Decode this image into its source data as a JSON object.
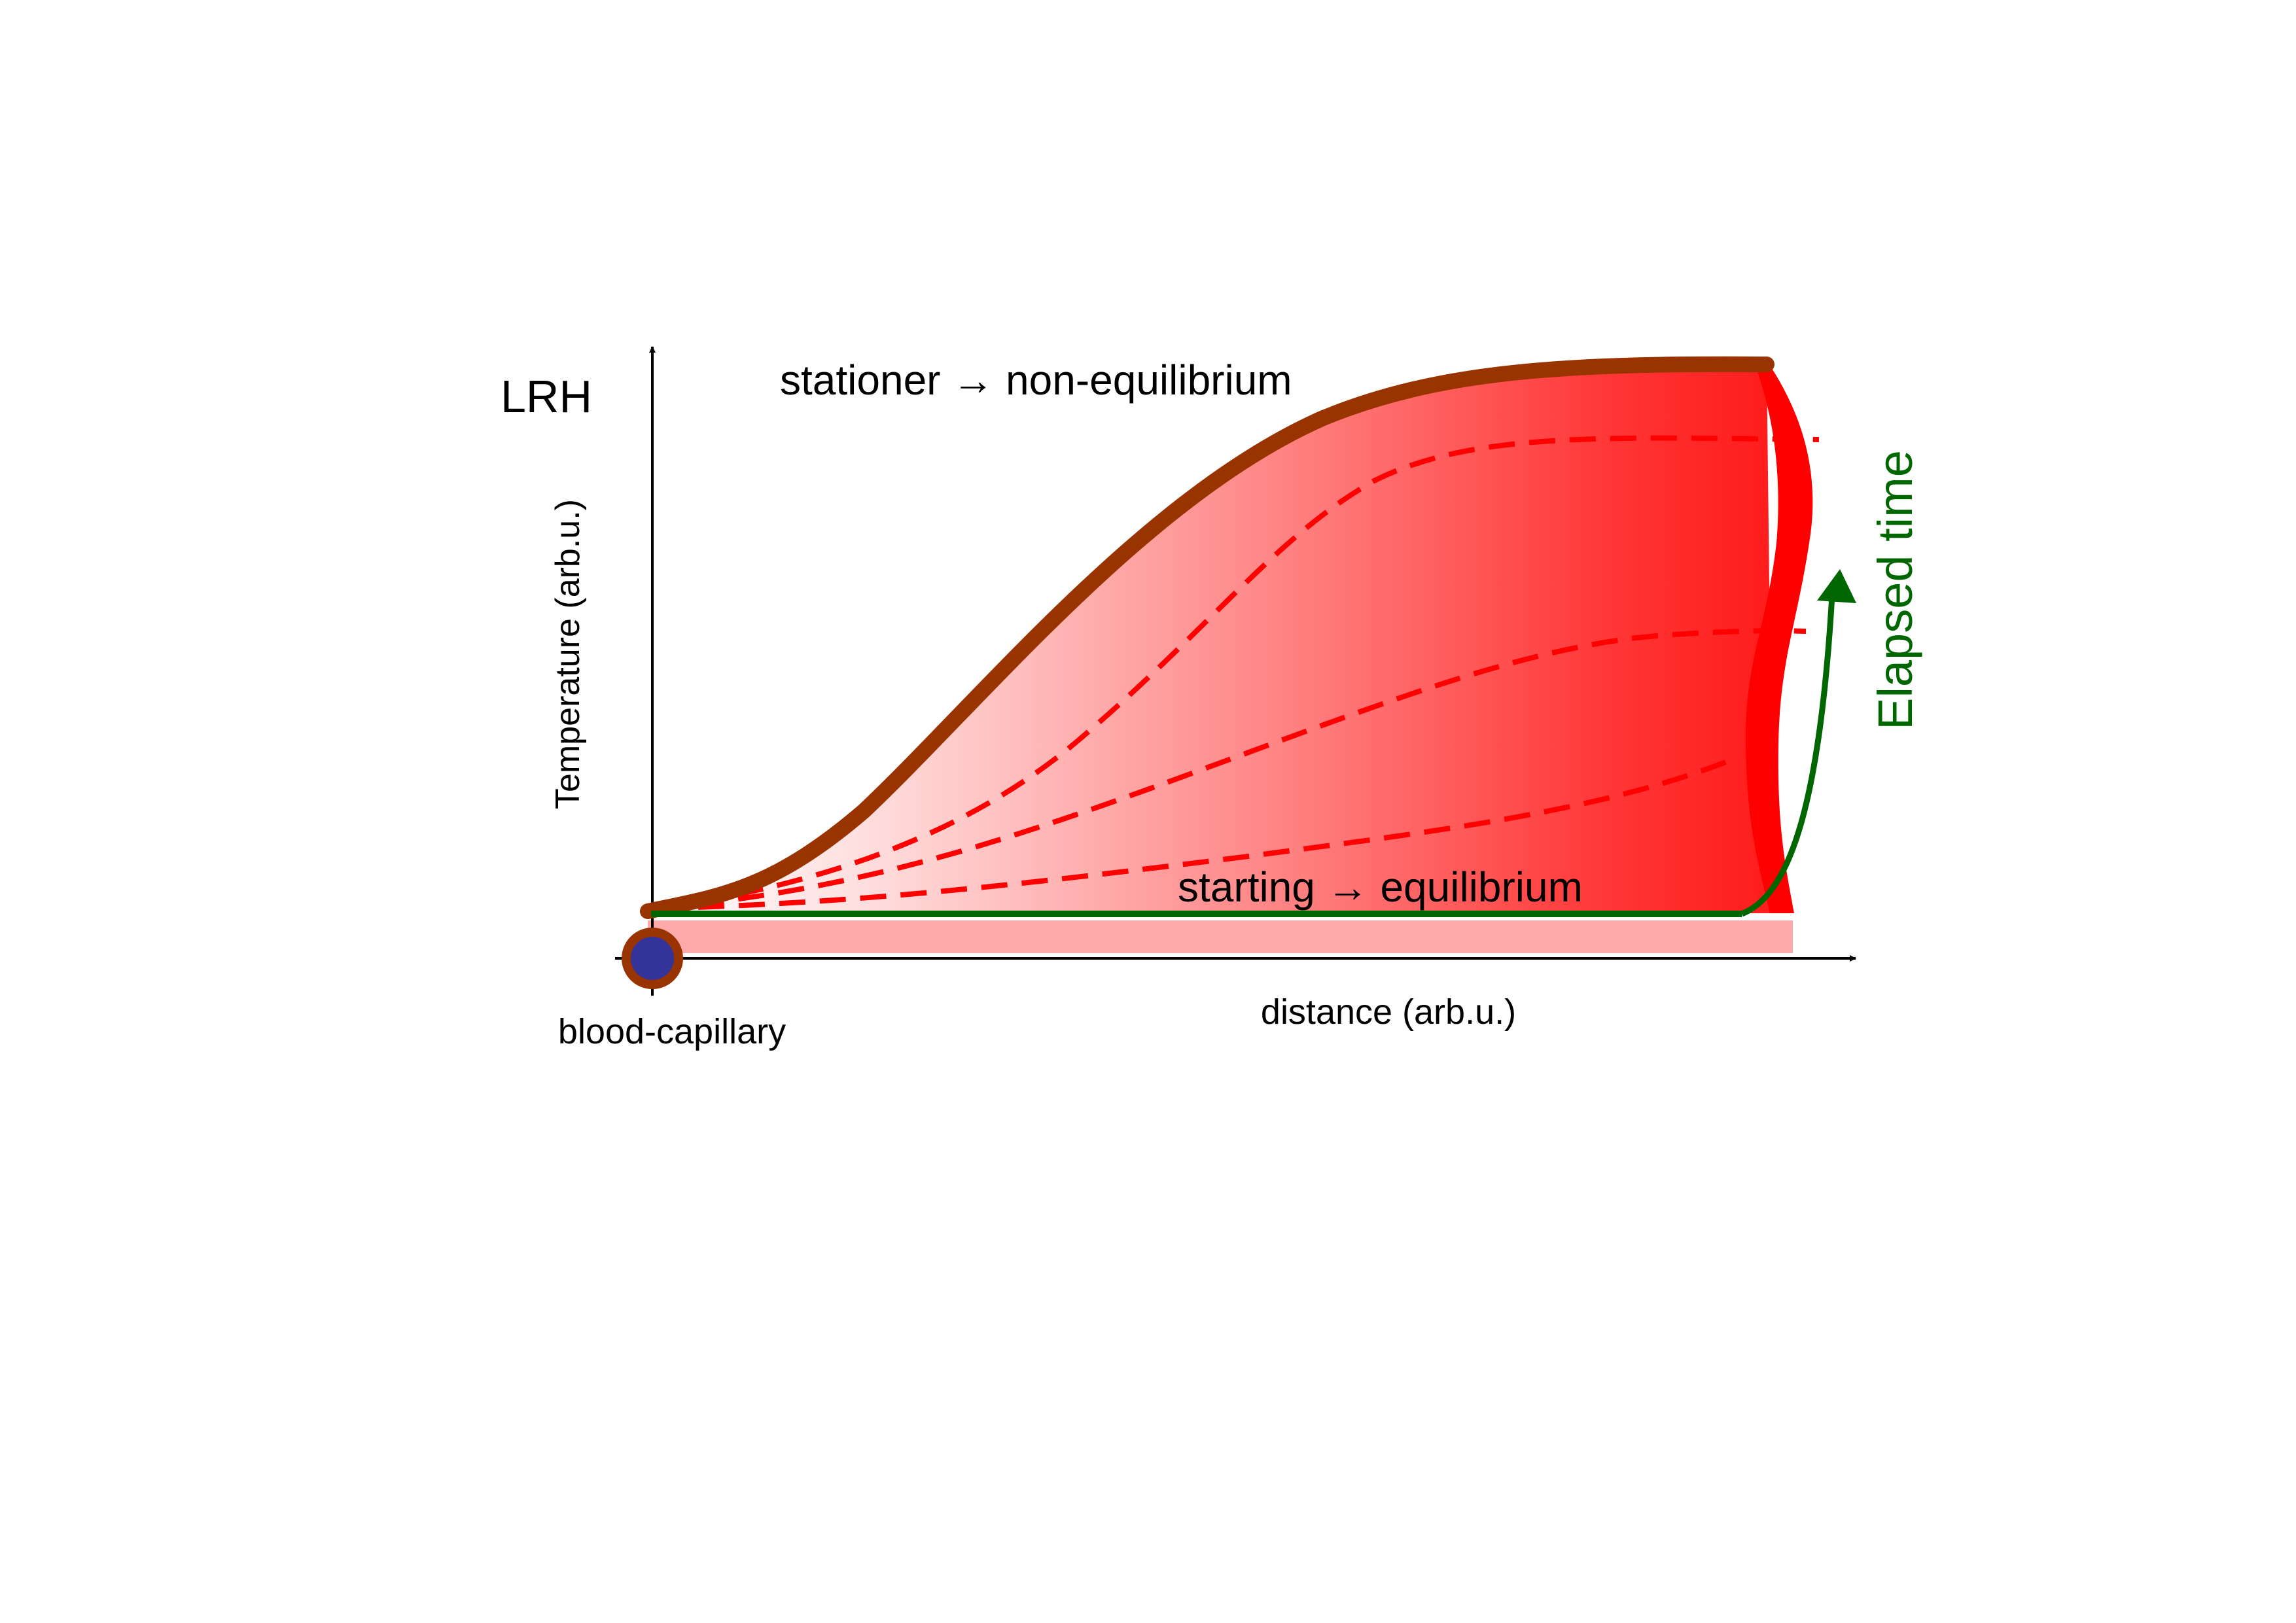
{
  "corner_label": "LRH",
  "y_axis_label": "Temperature (arb.u.)",
  "x_axis_label": "distance (arb.u.)",
  "origin_label": "blood-capillary",
  "top_curve_label": "stationer → non-equilibrium",
  "bottom_line_label": "starting → equilibrium",
  "time_arrow_label": "Elapsed time",
  "colors": {
    "stationary_curve": "#993300",
    "intermediate_curves": "#ff0000",
    "starting_line": "#006600",
    "heated_region": "#ff0000",
    "tissue_bar": "#ffaaaa",
    "capillary_fill": "#333399",
    "capillary_ring": "#993300",
    "time_arrow": "#006600"
  }
}
